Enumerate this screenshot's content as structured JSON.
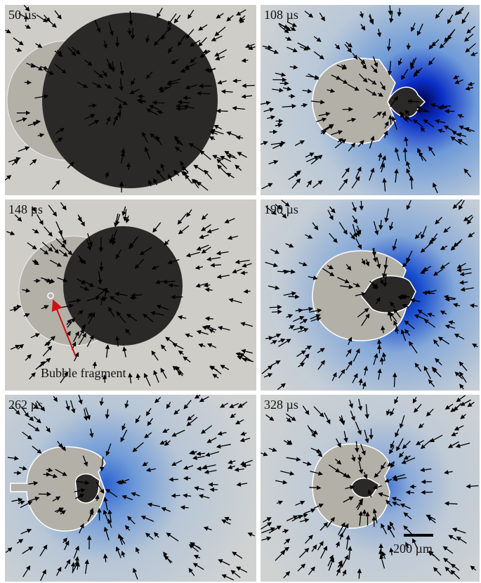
{
  "panels": [
    {
      "label": "50 µs"
    },
    {
      "label": "108 µs"
    },
    {
      "label": "148 µs"
    },
    {
      "label": "190 µs"
    },
    {
      "label": "262 µs"
    },
    {
      "label": "328 µs"
    }
  ],
  "annotation": {
    "text": "Bubble fragment"
  },
  "scale_bar": {
    "label": "200 µm"
  }
}
